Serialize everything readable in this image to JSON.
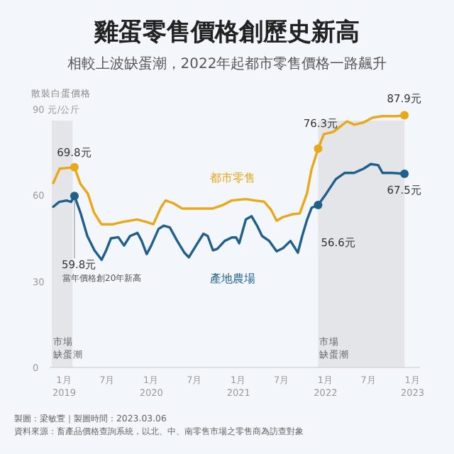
{
  "chart_data": {
    "type": "line",
    "title": "雞蛋零售價格創歷史新高",
    "subtitle": "相較上波缺蛋潮，2022年起都市零售價格一路飆升",
    "ylabel": "散裝白蛋價格",
    "xlim": [
      "2018-11-01",
      "2023-02-01"
    ],
    "xticks": [
      {
        "value": "2019-01",
        "label": "1月\n2019"
      },
      {
        "value": "2019-07",
        "label": "7月"
      },
      {
        "value": "2020-01",
        "label": "1月\n2020"
      },
      {
        "value": "2020-07",
        "label": "7月"
      },
      {
        "value": "2021-01",
        "label": "1月\n2021"
      },
      {
        "value": "2021-07",
        "label": "7月"
      },
      {
        "value": "2022-01",
        "label": "1月\n2022"
      },
      {
        "value": "2022-07",
        "label": "7月"
      },
      {
        "value": "2023-01",
        "label": "1月\n2023"
      }
    ],
    "ylim": [
      0,
      90
    ],
    "yticks": [
      0,
      30,
      60,
      {
        "value": 90,
        "label": "90 元/公斤"
      }
    ],
    "series": [
      {
        "name": "都市零售",
        "color": "#e8a817",
        "x": [
          "2018-11-16",
          "2018-12-13",
          "2019-01-10",
          "2019-02-13",
          "2019-03-10",
          "2019-04-10",
          "2019-05-06",
          "2019-06-06",
          "2019-07-25",
          "2019-09-03",
          "2019-11-03",
          "2019-12-12",
          "2020-01-10",
          "2020-02-10",
          "2020-03-01",
          "2020-04-01",
          "2020-05-10",
          "2020-07-15",
          "2020-09-15",
          "2020-10-25",
          "2020-12-03",
          "2021-02-01",
          "2021-03-10",
          "2021-04-18",
          "2021-05-18",
          "2021-06-10",
          "2021-07-06",
          "2021-08-15",
          "2021-09-15",
          "2021-10-15",
          "2021-11-03",
          "2021-12-01",
          "2021-12-25",
          "2022-02-03",
          "2022-03-01",
          "2022-04-01",
          "2022-05-01",
          "2022-06-10",
          "2022-07-18",
          "2022-08-28",
          "2022-10-28",
          "2022-11-28"
        ],
        "values": [
          64.3,
          69.3,
          69.5,
          69.8,
          64.0,
          60.6,
          54.0,
          49.9,
          49.9,
          50.7,
          51.6,
          50.7,
          49.9,
          55.7,
          58.2,
          57.3,
          55.4,
          55.4,
          55.4,
          56.5,
          58.2,
          58.7,
          58.2,
          57.8,
          54.9,
          51.1,
          52.4,
          53.4,
          53.7,
          60.6,
          68.9,
          76.3,
          81.3,
          82.1,
          83.8,
          85.8,
          84.6,
          85.4,
          87.1,
          87.6,
          87.6,
          87.9
        ]
      },
      {
        "name": "產地農場",
        "color": "#1f5f8b",
        "x": [
          "2018-11-16",
          "2018-12-11",
          "2019-01-11",
          "2019-01-30",
          "2019-02-13",
          "2019-03-10",
          "2019-04-08",
          "2019-05-08",
          "2019-06-07",
          "2019-06-26",
          "2019-07-16",
          "2019-08-16",
          "2019-09-09",
          "2019-10-04",
          "2019-11-04",
          "2019-11-22",
          "2019-12-13",
          "2020-01-01",
          "2020-02-01",
          "2020-02-22",
          "2020-03-19",
          "2020-04-19",
          "2020-05-19",
          "2020-06-07",
          "2020-07-07",
          "2020-08-07",
          "2020-08-25",
          "2020-09-16",
          "2020-10-04",
          "2020-11-04",
          "2020-12-04",
          "2020-12-22",
          "2021-01-04",
          "2021-02-01",
          "2021-02-25",
          "2021-03-22",
          "2021-04-10",
          "2021-05-10",
          "2021-06-10",
          "2021-07-07",
          "2021-08-07",
          "2021-09-07",
          "2021-09-25",
          "2021-10-16",
          "2021-11-04",
          "2021-12-01",
          "2022-01-04",
          "2022-02-13",
          "2022-03-22",
          "2022-05-01",
          "2022-06-10",
          "2022-07-10",
          "2022-08-10",
          "2022-08-28",
          "2022-10-07",
          "2022-11-28"
        ],
        "values": [
          56.0,
          57.7,
          58.2,
          57.7,
          59.8,
          54.0,
          45.8,
          40.8,
          37.5,
          40.8,
          45.0,
          45.4,
          42.5,
          45.8,
          46.9,
          44.1,
          39.5,
          42.5,
          48.3,
          49.4,
          48.8,
          44.1,
          40.0,
          38.4,
          42.5,
          46.6,
          45.8,
          40.8,
          41.3,
          44.1,
          45.3,
          45.3,
          43.3,
          51.6,
          52.7,
          49.1,
          45.8,
          44.1,
          40.5,
          41.6,
          44.1,
          40.0,
          45.8,
          51.6,
          55.7,
          56.6,
          60.6,
          65.6,
          67.8,
          67.8,
          69.3,
          70.9,
          70.5,
          67.8,
          67.8,
          67.5
        ]
      }
    ],
    "bands": [
      {
        "axis": "x",
        "from": "2018-11-10",
        "to": "2019-02-05",
        "label": "市場缺蛋潮",
        "color": "#e3e5e8"
      },
      {
        "axis": "x",
        "from": "2021-12-01",
        "to": "2022-11-28",
        "label": "市場缺蛋潮",
        "color": "#e3e5e8"
      }
    ],
    "annotations": [
      {
        "text": "69.8元",
        "x": "2019-02-13",
        "y": 69.8
      },
      {
        "text": "59.8元",
        "x": "2019-02-13",
        "y": 59.8
      },
      "當年價格創20年新高",
      {
        "text": "76.3元",
        "x": "2021-12-01",
        "y": 76.3
      },
      {
        "text": "56.6元",
        "x": "2021-12-01",
        "y": 56.6
      },
      {
        "text": "87.9元",
        "x": "2022-11-28",
        "y": 87.9
      },
      {
        "text": "67.5元",
        "x": "2022-11-28",
        "y": 67.5
      },
      "製圖：梁敏萱｜製圖時間：2023.03.06",
      "資料來源：畜產品價格查詢系統，以北、中、南零售市場之零售商為訪查對象"
    ]
  }
}
